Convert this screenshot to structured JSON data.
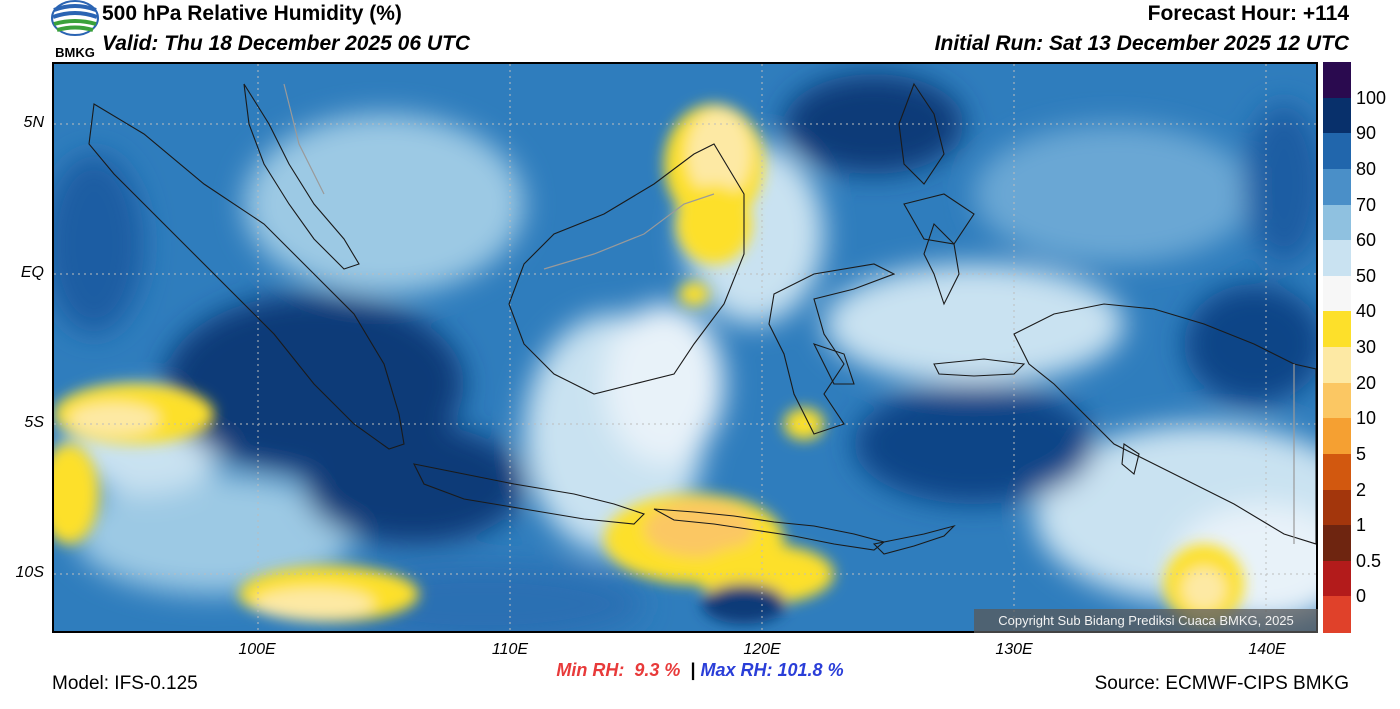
{
  "header": {
    "title": "500 hPa Relative Humidity (%)",
    "valid": "Valid: Thu 18 December 2025 06 UTC",
    "forecast_hour": "Forecast Hour: +114",
    "initial_run": "Initial Run: Sat 13 December 2025 12 UTC"
  },
  "logo": {
    "text": "BMKG"
  },
  "map": {
    "lat_ticks": [
      "5N",
      "EQ",
      "5S",
      "10S"
    ],
    "lon_ticks": [
      "100E",
      "110E",
      "120E",
      "130E",
      "140E"
    ],
    "copyright": "Copyright Sub Bidang Prediksi Cuaca BMKG, 2025"
  },
  "colorbar": {
    "labels": [
      "100",
      "90",
      "80",
      "70",
      "60",
      "50",
      "40",
      "30",
      "20",
      "10",
      "5",
      "2",
      "1",
      "0.5",
      "0"
    ],
    "colors": [
      "#2a0a4f",
      "#08306b",
      "#2166ac",
      "#4a8fc8",
      "#8fc1e0",
      "#c9e2f1",
      "#f7f7f7",
      "#fde02a",
      "#fde9a4",
      "#fbc763",
      "#f5a032",
      "#d2580f",
      "#a3360c",
      "#6e2510",
      "#b31b1b",
      "#e0412a"
    ]
  },
  "stats": {
    "min_label": "Min RH:",
    "min_value": "9.3 %",
    "separator": "|",
    "max_label": "Max RH: 101.8 %"
  },
  "footer": {
    "model": "Model: IFS-0.125",
    "source": "Source: ECMWF-CIPS BMKG"
  }
}
